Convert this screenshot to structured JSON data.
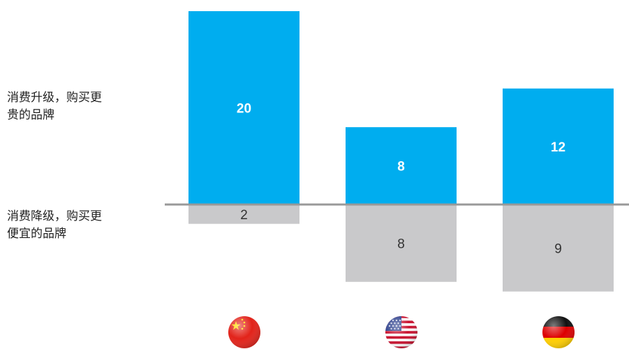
{
  "labels": {
    "upgrade": [
      "消费升级，购买更",
      "贵的品牌"
    ],
    "downgrade": [
      "消费降级，购买更",
      "便宜的品牌"
    ]
  },
  "colors": {
    "positive": "#00adef",
    "negative": "#c9c9cb",
    "baseline": "#999999"
  },
  "flags": [
    "china-flag-icon",
    "usa-flag-icon",
    "germany-flag-icon"
  ],
  "chart_data": {
    "type": "bar",
    "categories": [
      "China",
      "USA",
      "Germany"
    ],
    "series": [
      {
        "values": [
          20,
          8,
          12
        ]
      },
      {
        "values": [
          -2,
          -8,
          -9
        ]
      }
    ],
    "data_labels_positive": [
      "20",
      "8",
      "12"
    ],
    "data_labels_negative": [
      "2",
      "8",
      "9"
    ],
    "ylim": [
      -10,
      20.5
    ],
    "grid": false,
    "legend": "none"
  }
}
